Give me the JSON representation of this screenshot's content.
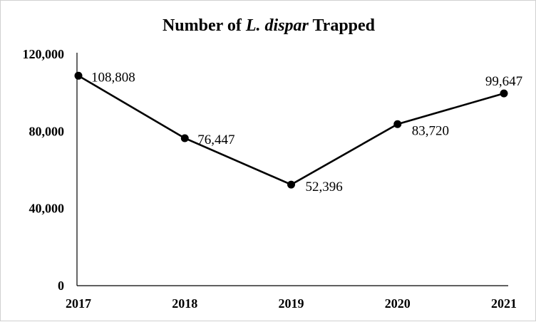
{
  "chart_data": {
    "type": "line",
    "title": {
      "prefix": "Number of ",
      "italic": "L. dispar",
      "suffix": " Trapped"
    },
    "xlabel": "",
    "ylabel": "",
    "categories": [
      "2017",
      "2018",
      "2019",
      "2020",
      "2021"
    ],
    "series": [
      {
        "values": [
          108808,
          76447,
          52396,
          83720,
          99647
        ],
        "labels": [
          "108,808",
          "76,447",
          "52,396",
          "83,720",
          "99,647"
        ]
      }
    ],
    "ylim": [
      0,
      120000
    ],
    "yticks": [
      0,
      40000,
      80000,
      120000
    ],
    "ytick_labels": [
      "0",
      "40,000",
      "80,000",
      "120,000"
    ],
    "grid": false,
    "legend": "none",
    "colors": {
      "line": "#000000",
      "marker": "#000000",
      "axis": "#000000",
      "background": "#ffffff"
    }
  }
}
